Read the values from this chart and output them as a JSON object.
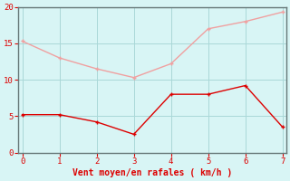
{
  "x": [
    0,
    1,
    2,
    3,
    4,
    5,
    6,
    7
  ],
  "y_rafales": [
    15.3,
    13.0,
    11.5,
    10.3,
    12.2,
    17.0,
    18.0,
    19.3
  ],
  "y_moyen": [
    5.2,
    5.2,
    4.2,
    2.5,
    8.0,
    8.0,
    9.2,
    3.5
  ],
  "color_rafales": "#f0a0a0",
  "color_moyen": "#dd0000",
  "background_color": "#d8f5f5",
  "grid_color": "#aad8d8",
  "spine_color": "#667777",
  "xlabel": "Vent moyen/en rafales ( km/h )",
  "xlabel_color": "#dd0000",
  "tick_color": "#dd0000",
  "xlim": [
    -0.1,
    7.1
  ],
  "ylim": [
    0,
    20
  ],
  "yticks": [
    0,
    5,
    10,
    15,
    20
  ],
  "xticks": [
    0,
    1,
    2,
    3,
    4,
    5,
    6,
    7
  ],
  "markersize": 3,
  "linewidth": 1.0
}
